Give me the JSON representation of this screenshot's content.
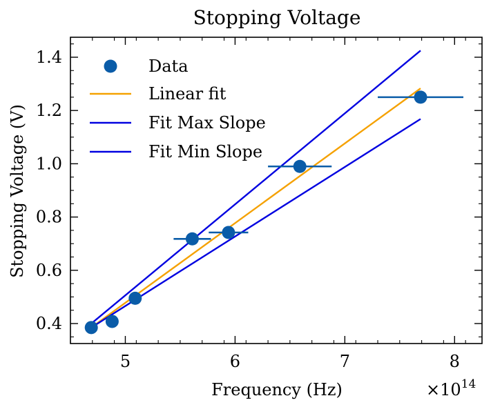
{
  "chart_data": {
    "type": "scatter",
    "title": "Stopping Voltage",
    "xlabel": "Frequency (Hz)",
    "ylabel": "Stopping Voltage (V)",
    "x_offset_label": "×10",
    "x_offset_exponent": "14",
    "xlim": [
      4.5,
      8.25
    ],
    "ylim": [
      0.325,
      1.475
    ],
    "x_ticks": [
      5,
      6,
      7,
      8
    ],
    "x_tick_labels": [
      "5",
      "6",
      "7",
      "8"
    ],
    "y_ticks": [
      0.4,
      0.6,
      0.8,
      1.0,
      1.2,
      1.4
    ],
    "y_tick_labels": [
      "0.4",
      "0.6",
      "0.8",
      "1.0",
      "1.2",
      "1.4"
    ],
    "x_minor_step": 0.2,
    "y_minor_step": 0.05,
    "grid": false,
    "legend_position": "top-left",
    "scatter": {
      "name": "Data",
      "color": "#0a5ca8",
      "x": [
        4.69,
        4.88,
        5.09,
        5.61,
        5.94,
        6.59,
        7.69
      ],
      "y": [
        0.385,
        0.408,
        0.495,
        0.718,
        0.742,
        0.99,
        1.25
      ],
      "xerr": [
        0.0,
        0.0,
        0.0,
        0.17,
        0.18,
        0.29,
        0.39
      ]
    },
    "lines": [
      {
        "name": "Linear fit",
        "color": "#f5a100",
        "x": [
          4.69,
          7.69
        ],
        "y": [
          0.385,
          1.283
        ]
      },
      {
        "name": "Fit Max Slope",
        "color": "#0000e0",
        "x": [
          4.69,
          7.69
        ],
        "y": [
          0.4,
          1.425
        ]
      },
      {
        "name": "Fit Min Slope",
        "color": "#0000e0",
        "x": [
          4.69,
          7.69
        ],
        "y": [
          0.385,
          1.168
        ]
      }
    ]
  }
}
